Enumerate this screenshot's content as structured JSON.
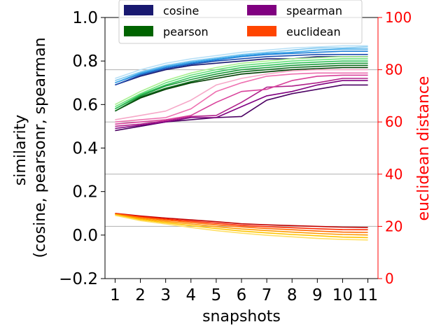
{
  "chart_data": {
    "type": "line",
    "xlabel": "snapshots",
    "ylabel_lines": [
      "similarity",
      "(cosine, pearsonr, spearman"
    ],
    "ylabel_right": "euclidean distance",
    "x": [
      1,
      2,
      3,
      4,
      5,
      6,
      7,
      8,
      9,
      10,
      11
    ],
    "x_tick_labels": [
      "1",
      "2",
      "3",
      "4",
      "5",
      "6",
      "7",
      "8",
      "9",
      "10",
      "11"
    ],
    "ylim_left": [
      -0.2,
      1.0
    ],
    "y_ticks_left": [
      "−0.2",
      "0.0",
      "0.2",
      "0.4",
      "0.6",
      "0.8",
      "1.0"
    ],
    "y_tick_values_left": [
      -0.2,
      0.0,
      0.2,
      0.4,
      0.6,
      0.8,
      1.0
    ],
    "ylim_right": [
      0,
      100
    ],
    "y_ticks_right": [
      "0",
      "20",
      "40",
      "60",
      "80",
      "100"
    ],
    "y_tick_values_right": [
      0,
      20,
      40,
      60,
      80,
      100
    ],
    "right_gridlines": [
      20,
      40,
      60,
      80
    ],
    "legend": [
      {
        "label": "cosine",
        "color": "#191970"
      },
      {
        "label": "spearman",
        "color": "#800080"
      },
      {
        "label": "pearson",
        "color": "#006400"
      },
      {
        "label": "euclidean",
        "color": "#ff4500"
      }
    ],
    "axis_colors": {
      "left": "#000000",
      "right": "#ff0000",
      "grid": "#b0b0b0"
    },
    "series": [
      {
        "name": "cosine",
        "group": "cosine",
        "axis": "left",
        "color": "#191970",
        "values": [
          0.69,
          0.73,
          0.76,
          0.78,
          0.79,
          0.8,
          0.81,
          0.81,
          0.82,
          0.82,
          0.82
        ]
      },
      {
        "name": "cosine",
        "group": "cosine",
        "axis": "left",
        "color": "#1f4fb0",
        "values": [
          0.69,
          0.735,
          0.765,
          0.785,
          0.8,
          0.81,
          0.82,
          0.825,
          0.83,
          0.83,
          0.83
        ]
      },
      {
        "name": "cosine",
        "group": "cosine",
        "axis": "left",
        "color": "#1e80d8",
        "values": [
          0.7,
          0.74,
          0.77,
          0.79,
          0.805,
          0.82,
          0.83,
          0.835,
          0.84,
          0.845,
          0.845
        ]
      },
      {
        "name": "cosine",
        "group": "cosine",
        "axis": "left",
        "color": "#3fa8e8",
        "values": [
          0.7,
          0.745,
          0.775,
          0.795,
          0.81,
          0.825,
          0.835,
          0.84,
          0.85,
          0.855,
          0.855
        ]
      },
      {
        "name": "cosine",
        "group": "cosine",
        "axis": "left",
        "color": "#7fc8f0",
        "values": [
          0.71,
          0.75,
          0.78,
          0.8,
          0.815,
          0.83,
          0.84,
          0.85,
          0.86,
          0.86,
          0.865
        ]
      },
      {
        "name": "cosine",
        "group": "cosine",
        "axis": "left",
        "color": "#b8e0f6",
        "values": [
          0.72,
          0.76,
          0.79,
          0.81,
          0.825,
          0.84,
          0.85,
          0.86,
          0.865,
          0.87,
          0.87
        ]
      },
      {
        "name": "pearson",
        "group": "pearson",
        "axis": "left",
        "color": "#003d00",
        "values": [
          0.57,
          0.63,
          0.67,
          0.7,
          0.72,
          0.74,
          0.75,
          0.76,
          0.765,
          0.77,
          0.77
        ]
      },
      {
        "name": "pearson",
        "group": "pearson",
        "axis": "left",
        "color": "#0b6b1a",
        "values": [
          0.57,
          0.635,
          0.675,
          0.705,
          0.73,
          0.75,
          0.76,
          0.77,
          0.775,
          0.78,
          0.78
        ]
      },
      {
        "name": "pearson",
        "group": "pearson",
        "axis": "left",
        "color": "#1a9a3a",
        "values": [
          0.58,
          0.64,
          0.685,
          0.715,
          0.74,
          0.76,
          0.77,
          0.78,
          0.785,
          0.79,
          0.79
        ]
      },
      {
        "name": "pearson",
        "group": "pearson",
        "axis": "left",
        "color": "#33c25a",
        "values": [
          0.58,
          0.645,
          0.69,
          0.725,
          0.75,
          0.77,
          0.78,
          0.79,
          0.795,
          0.8,
          0.8
        ]
      },
      {
        "name": "pearson",
        "group": "pearson",
        "axis": "left",
        "color": "#66e07a",
        "values": [
          0.59,
          0.65,
          0.7,
          0.735,
          0.76,
          0.78,
          0.79,
          0.8,
          0.805,
          0.81,
          0.81
        ]
      },
      {
        "name": "pearson",
        "group": "pearson",
        "axis": "left",
        "color": "#a8f090",
        "values": [
          0.6,
          0.66,
          0.71,
          0.745,
          0.77,
          0.79,
          0.8,
          0.81,
          0.815,
          0.82,
          0.82
        ]
      },
      {
        "name": "spearman",
        "group": "spearman",
        "axis": "left",
        "color": "#4b0062",
        "values": [
          0.48,
          0.5,
          0.52,
          0.53,
          0.54,
          0.545,
          0.62,
          0.65,
          0.67,
          0.69,
          0.69
        ]
      },
      {
        "name": "spearman",
        "group": "spearman",
        "axis": "left",
        "color": "#800080",
        "values": [
          0.49,
          0.505,
          0.52,
          0.54,
          0.54,
          0.59,
          0.64,
          0.66,
          0.69,
          0.71,
          0.71
        ]
      },
      {
        "name": "spearman",
        "group": "spearman",
        "axis": "left",
        "color": "#b0208a",
        "values": [
          0.5,
          0.51,
          0.525,
          0.545,
          0.55,
          0.61,
          0.68,
          0.685,
          0.7,
          0.72,
          0.72
        ]
      },
      {
        "name": "spearman",
        "group": "spearman",
        "axis": "left",
        "color": "#d8409a",
        "values": [
          0.51,
          0.52,
          0.53,
          0.55,
          0.61,
          0.66,
          0.67,
          0.71,
          0.73,
          0.735,
          0.735
        ]
      },
      {
        "name": "spearman",
        "group": "spearman",
        "axis": "left",
        "color": "#ee70b0",
        "values": [
          0.52,
          0.53,
          0.54,
          0.58,
          0.66,
          0.7,
          0.73,
          0.74,
          0.745,
          0.745,
          0.745
        ]
      },
      {
        "name": "spearman",
        "group": "spearman",
        "axis": "left",
        "color": "#f6a8c8",
        "values": [
          0.53,
          0.55,
          0.57,
          0.62,
          0.69,
          0.72,
          0.74,
          0.755,
          0.76,
          0.76,
          0.76
        ]
      },
      {
        "name": "euclidean",
        "group": "euclidean",
        "axis": "right",
        "color": "#c00000",
        "values": [
          25.0,
          24.0,
          23.2,
          22.5,
          21.8,
          21.0,
          20.6,
          20.3,
          20.0,
          19.7,
          19.6
        ]
      },
      {
        "name": "euclidean",
        "group": "euclidean",
        "axis": "right",
        "color": "#ff2a00",
        "values": [
          24.9,
          23.7,
          22.8,
          22.0,
          21.2,
          20.4,
          19.9,
          19.5,
          19.1,
          18.8,
          18.7
        ]
      },
      {
        "name": "euclidean",
        "group": "euclidean",
        "axis": "right",
        "color": "#ff6a00",
        "values": [
          24.8,
          23.4,
          22.4,
          21.5,
          20.6,
          19.8,
          19.2,
          18.7,
          18.2,
          17.8,
          17.7
        ]
      },
      {
        "name": "euclidean",
        "group": "euclidean",
        "axis": "right",
        "color": "#ff9a00",
        "values": [
          24.6,
          23.0,
          21.9,
          20.9,
          19.9,
          19.0,
          18.4,
          17.8,
          17.3,
          16.9,
          16.7
        ]
      },
      {
        "name": "euclidean",
        "group": "euclidean",
        "axis": "right",
        "color": "#ffc400",
        "values": [
          24.4,
          22.6,
          21.4,
          20.3,
          19.2,
          18.2,
          17.5,
          16.9,
          16.4,
          15.9,
          15.7
        ]
      },
      {
        "name": "euclidean",
        "group": "euclidean",
        "axis": "right",
        "color": "#ffe066",
        "values": [
          24.2,
          22.2,
          20.9,
          19.6,
          18.4,
          17.4,
          16.6,
          16.0,
          15.4,
          15.0,
          14.8
        ]
      }
    ]
  }
}
